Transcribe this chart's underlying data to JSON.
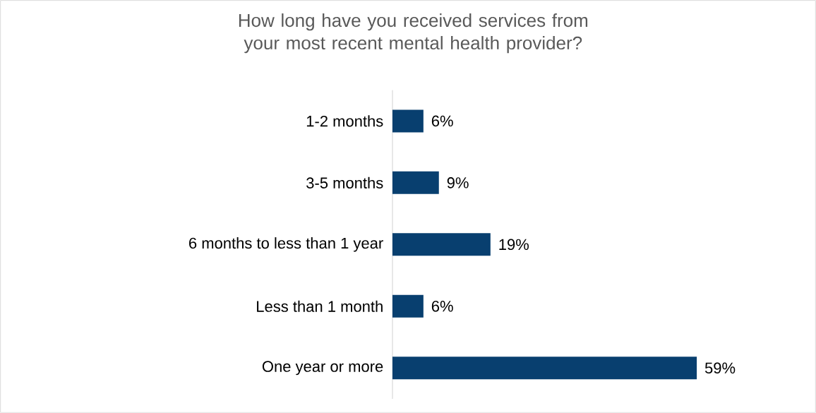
{
  "chart_data": {
    "type": "bar",
    "orientation": "horizontal",
    "title": "How long have you received services from your most recent mental health provider?",
    "categories": [
      "1-2 months",
      "3-5 months",
      "6 months to less than 1 year",
      "Less than 1 month",
      "One year or more"
    ],
    "values": [
      6,
      9,
      19,
      6,
      59
    ],
    "value_labels": [
      "6%",
      "9%",
      "19%",
      "6%",
      "59%"
    ],
    "color": "#083f6f"
  }
}
